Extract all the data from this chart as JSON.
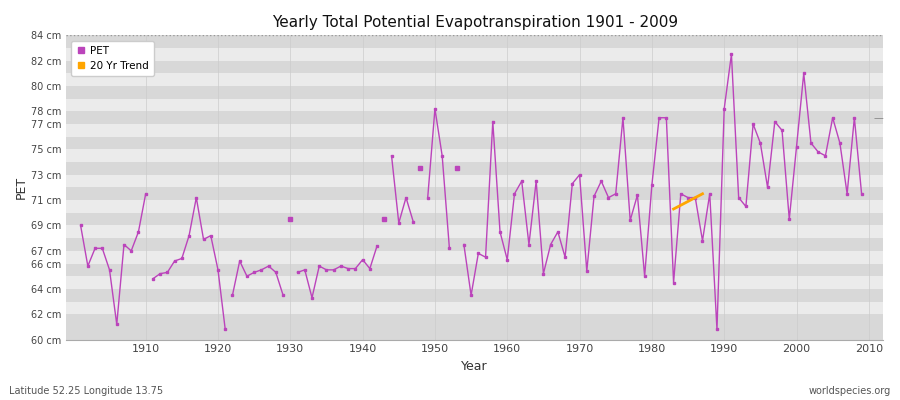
{
  "title": "Yearly Total Potential Evapotranspiration 1901 - 2009",
  "xlabel": "Year",
  "ylabel": "PET",
  "footnote_left": "Latitude 52.25 Longitude 13.75",
  "footnote_right": "worldspecies.org",
  "ylim": [
    60,
    84
  ],
  "pet_color": "#bb44bb",
  "trend_color": "#ffa500",
  "bg_outer": "#ffffff",
  "band_light": "#ebebeb",
  "band_dark": "#d8d8d8",
  "xlim_left": 1899,
  "xlim_right": 2012,
  "years": [
    1901,
    1902,
    1903,
    1904,
    1905,
    1906,
    1907,
    1908,
    1909,
    1910,
    1911,
    1912,
    1913,
    1914,
    1915,
    1916,
    1917,
    1918,
    1919,
    1920,
    1921,
    1922,
    1923,
    1924,
    1925,
    1926,
    1927,
    1928,
    1929,
    1930,
    1931,
    1932,
    1933,
    1934,
    1935,
    1936,
    1937,
    1938,
    1939,
    1940,
    1941,
    1942,
    1943,
    1944,
    1945,
    1946,
    1947,
    1948,
    1949,
    1950,
    1951,
    1952,
    1953,
    1954,
    1955,
    1956,
    1957,
    1958,
    1959,
    1960,
    1961,
    1962,
    1963,
    1964,
    1965,
    1966,
    1967,
    1968,
    1969,
    1970,
    1971,
    1972,
    1973,
    1974,
    1975,
    1976,
    1977,
    1978,
    1979,
    1980,
    1981,
    1982,
    1983,
    1984,
    1985,
    1986,
    1987,
    1988,
    1989,
    1990,
    1991,
    1992,
    1993,
    1994,
    1995,
    1996,
    1997,
    1998,
    1999,
    2000,
    2001,
    2002,
    2003,
    2004,
    2005,
    2006,
    2007,
    2008,
    2009
  ],
  "pet": [
    69.0,
    65.8,
    67.2,
    67.2,
    65.5,
    61.2,
    67.5,
    67.0,
    68.5,
    71.5,
    64.8,
    65.2,
    65.3,
    66.2,
    66.4,
    68.2,
    71.2,
    67.9,
    68.2,
    65.5,
    60.8,
    63.5,
    66.2,
    65.0,
    65.3,
    65.5,
    65.8,
    65.3,
    63.5,
    69.5,
    65.3,
    65.5,
    63.3,
    65.8,
    65.5,
    65.5,
    65.8,
    65.6,
    65.6,
    66.3,
    65.6,
    67.4,
    69.5,
    74.5,
    69.2,
    71.2,
    69.3,
    73.5,
    71.2,
    78.2,
    74.5,
    67.2,
    73.5,
    67.5,
    63.5,
    66.8,
    66.5,
    77.2,
    68.5,
    66.3,
    71.5,
    72.5,
    67.5,
    72.5,
    65.2,
    67.5,
    68.5,
    66.5,
    72.3,
    73.0,
    65.4,
    71.3,
    72.5,
    71.2,
    71.5,
    77.5,
    69.4,
    71.4,
    65.0,
    72.2,
    77.5,
    77.5,
    64.5,
    71.5,
    71.2,
    71.2,
    67.8,
    71.5,
    60.8,
    78.2,
    82.5,
    71.2,
    70.5,
    77.0,
    75.5,
    72.0,
    77.2,
    76.5,
    69.5,
    75.2,
    81.0,
    75.5,
    74.8,
    74.5,
    77.5,
    75.5,
    71.5,
    77.5,
    71.5
  ],
  "connected_segments": [
    [
      1901,
      1902,
      1903,
      1904,
      1905,
      1906,
      1907,
      1908,
      1909,
      1910
    ],
    [
      1911,
      1912,
      1913,
      1914,
      1915,
      1916,
      1917,
      1918,
      1919,
      1920,
      1921
    ],
    [
      1922,
      1923,
      1924,
      1925,
      1926,
      1927,
      1928,
      1929
    ],
    [
      1930
    ],
    [
      1931,
      1932,
      1933,
      1934,
      1935,
      1936,
      1937,
      1938,
      1939,
      1940,
      1941,
      1942
    ],
    [
      1943
    ],
    [
      1944,
      1945,
      1946,
      1947
    ],
    [
      1948
    ],
    [
      1949,
      1950,
      1951,
      1952
    ],
    [
      1953
    ],
    [
      1954,
      1955,
      1956,
      1957,
      1958,
      1959,
      1960,
      1961,
      1962,
      1963,
      1964,
      1965,
      1966,
      1967,
      1968,
      1969,
      1970,
      1971,
      1972,
      1973,
      1974,
      1975,
      1976,
      1977,
      1978,
      1979,
      1980,
      1981,
      1982,
      1983,
      1984,
      1985,
      1986,
      1987,
      1988,
      1989,
      1990,
      1991,
      1992,
      1993,
      1994,
      1995,
      1996,
      1997,
      1998,
      1999,
      2000,
      2001,
      2002,
      2003,
      2004,
      2005,
      2006,
      2007,
      2008,
      2009
    ]
  ],
  "trend_years": [
    1983,
    1987
  ],
  "trend_values": [
    70.3,
    71.5
  ],
  "ytick_positions": [
    60,
    62,
    63,
    64,
    65,
    66,
    67,
    68,
    69,
    70,
    71,
    72,
    73,
    74,
    75,
    76,
    77,
    78,
    79,
    80,
    81,
    82,
    83,
    84
  ],
  "ytick_labels": [
    "60 cm",
    "62 cm",
    "",
    "64 cm",
    "",
    "66 cm",
    "67 cm",
    "",
    "69 cm",
    "",
    "71 cm",
    "",
    "73 cm",
    "",
    "75 cm",
    "",
    "77 cm",
    "78 cm",
    "",
    "80 cm",
    "",
    "82 cm",
    "",
    "84 cm"
  ]
}
